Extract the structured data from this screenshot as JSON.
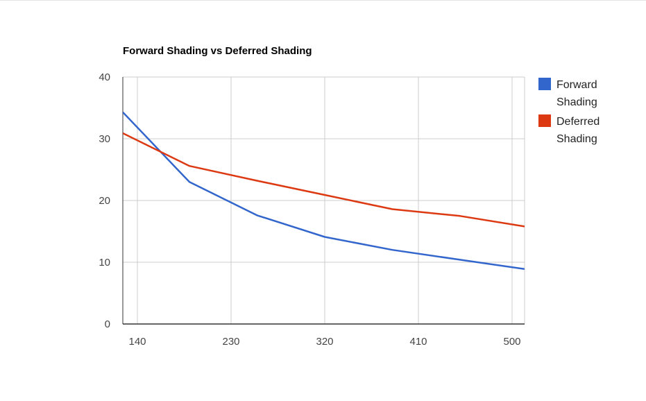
{
  "chart_data": {
    "type": "line",
    "title": "Forward Shading vs Deferred Shading",
    "xlabel": "",
    "ylabel": "",
    "xlim": [
      126,
      512
    ],
    "ylim": [
      0,
      40
    ],
    "x_ticks": [
      "140",
      "230",
      "320",
      "410",
      "500"
    ],
    "y_ticks": [
      "0",
      "10",
      "20",
      "30",
      "40"
    ],
    "grid": true,
    "legend_position": "right",
    "series": [
      {
        "name_lines": [
          "Forward",
          "Shading"
        ],
        "color": "#3366cc",
        "x": [
          126,
          190,
          255,
          320,
          385,
          450,
          512
        ],
        "y": [
          34.3,
          23.0,
          17.6,
          14.1,
          12.0,
          10.4,
          8.9
        ]
      },
      {
        "name_lines": [
          "Deferred",
          "Shading"
        ],
        "color": "#dc3912",
        "x": [
          126,
          190,
          255,
          320,
          385,
          450,
          512
        ],
        "y": [
          30.9,
          25.6,
          23.2,
          20.9,
          18.6,
          17.5,
          15.8
        ]
      }
    ]
  }
}
